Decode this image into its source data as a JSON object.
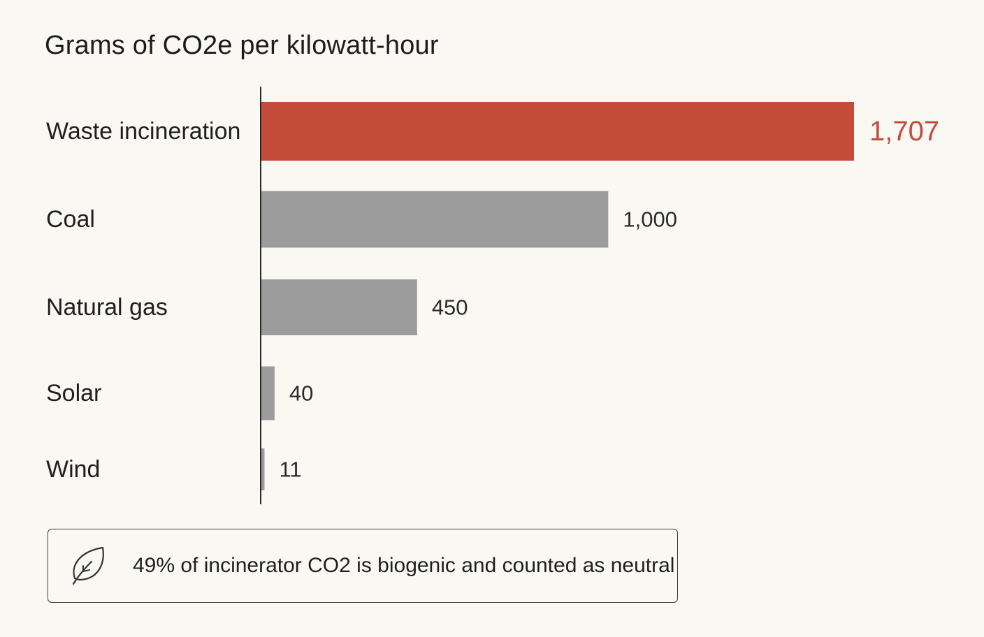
{
  "chart_data": {
    "type": "bar",
    "orientation": "horizontal",
    "title": "Grams of CO2e per kilowatt-hour",
    "xlabel": "",
    "ylabel": "",
    "categories": [
      "Waste incineration",
      "Coal",
      "Natural gas",
      "Solar",
      "Wind"
    ],
    "values": [
      1707,
      1000,
      450,
      40,
      11
    ],
    "value_labels": [
      "1,707",
      "1,000",
      "450",
      "40",
      "11"
    ],
    "highlight": "Waste incineration",
    "xlim": [
      0,
      1707
    ],
    "grid": false,
    "colors": {
      "highlight": "#c44a3a",
      "default": "#9c9c9c",
      "axis": "#2a2a2a",
      "default_label": "#2a2a2a"
    }
  },
  "note": {
    "icon": "leaf-icon",
    "text": "49% of incinerator CO2 is biogenic and counted as neutral"
  }
}
